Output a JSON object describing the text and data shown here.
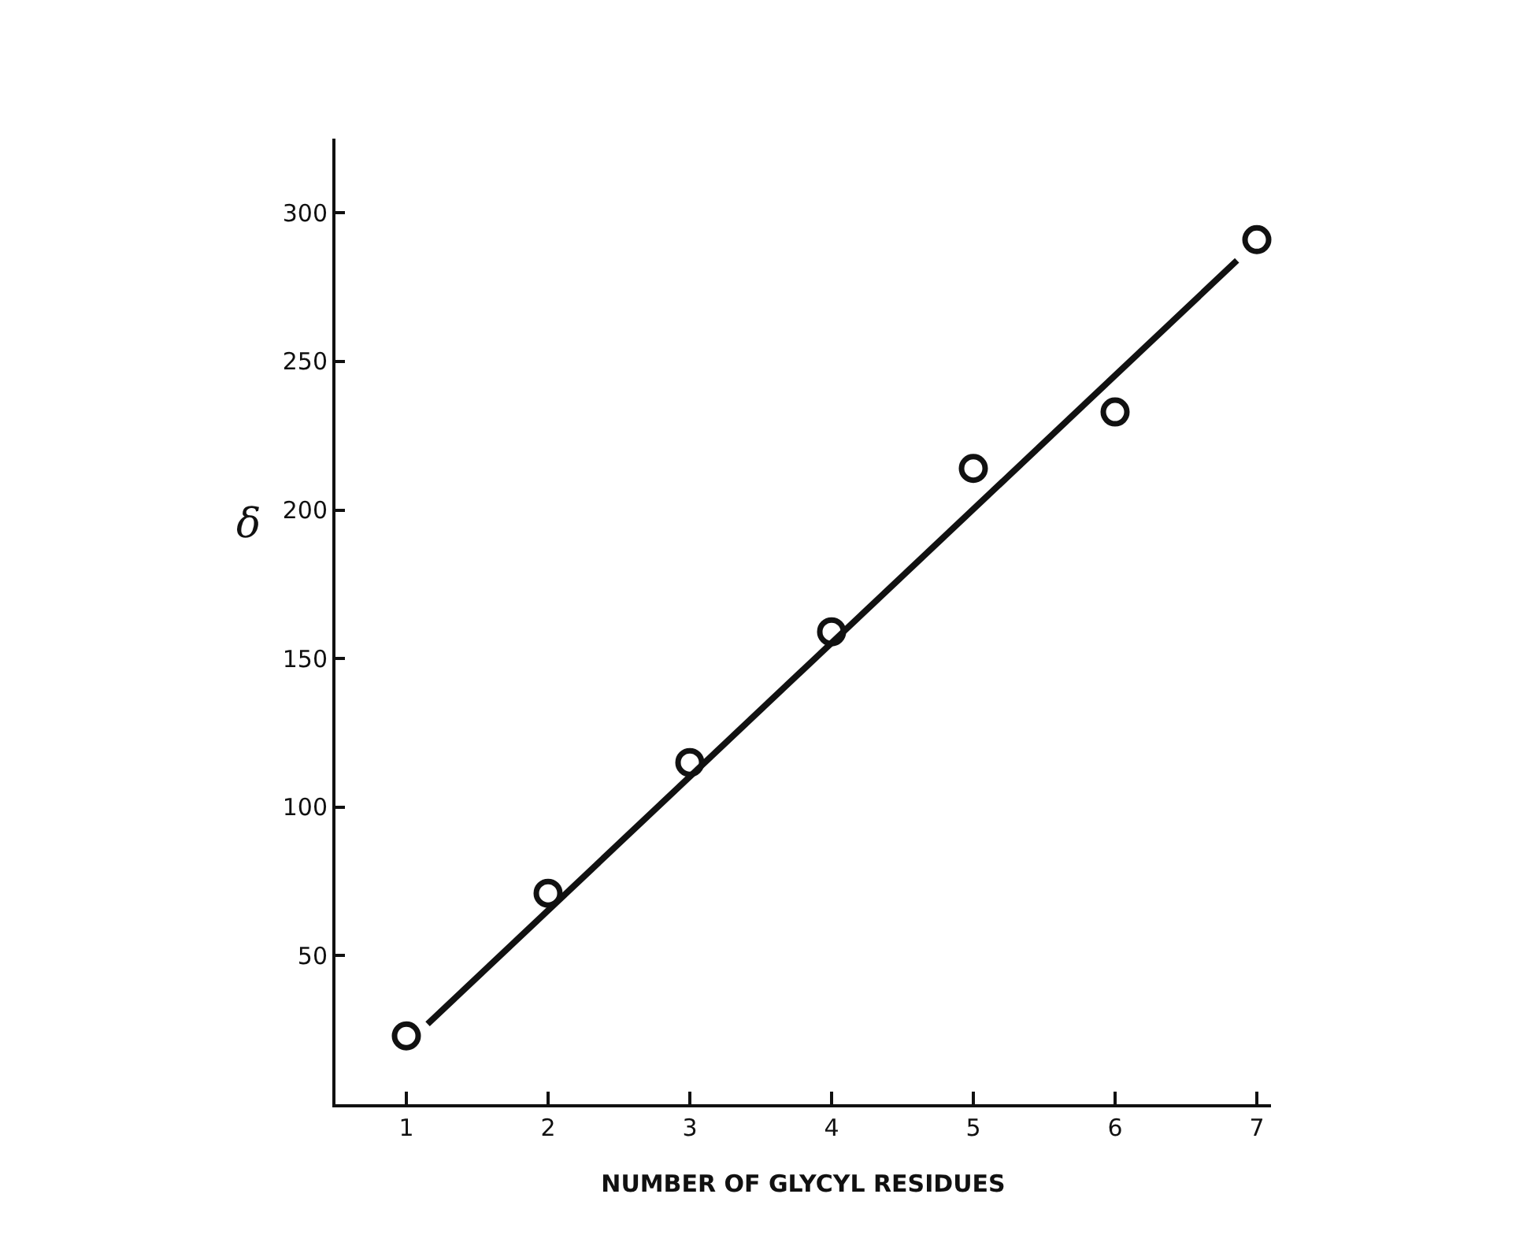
{
  "chart_data": {
    "type": "scatter",
    "xlabel": "NUMBER OF GLYCYL RESIDUES",
    "ylabel": "δ",
    "xlim": [
      0.5,
      7.1
    ],
    "xticks": [
      1,
      2,
      3,
      4,
      5,
      6,
      7
    ],
    "ylim": [
      0,
      325
    ],
    "yticks": [
      50,
      100,
      150,
      200,
      250,
      300
    ],
    "marker": "circle",
    "series": [
      {
        "type": "line",
        "color": "#111111",
        "x": [
          1.15,
          6.86
        ],
        "values": [
          27,
          284
        ],
        "marker": "none"
      },
      {
        "color": "#111111",
        "x": [
          1,
          2,
          3,
          4,
          5,
          6,
          7
        ],
        "values": [
          23,
          71,
          115,
          159,
          214,
          233,
          291
        ]
      }
    ]
  }
}
